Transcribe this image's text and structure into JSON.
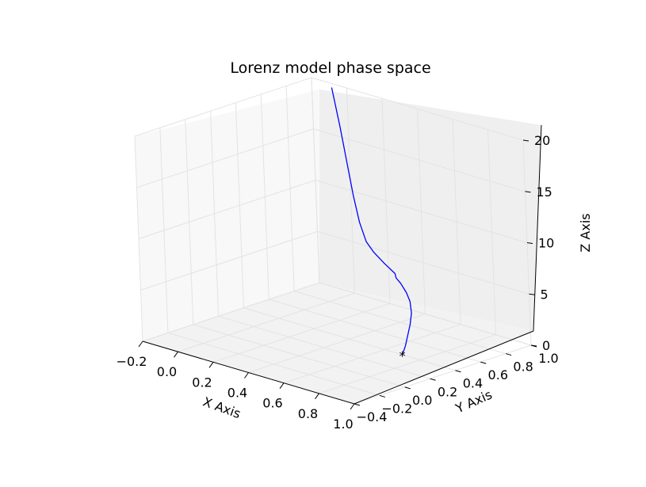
{
  "chart_data": {
    "type": "line",
    "projection": "3d",
    "title": "Lorenz model phase space",
    "xlabel": "X Axis",
    "ylabel": "Y Axis",
    "zlabel": "Z Axis",
    "xlim": [
      -0.2,
      1.0
    ],
    "ylim": [
      -0.4,
      1.0
    ],
    "zlim": [
      0,
      20
    ],
    "x_ticks": [
      "−0.2",
      "0.0",
      "0.2",
      "0.4",
      "0.6",
      "0.8",
      "1.0"
    ],
    "y_ticks": [
      "−0.4",
      "−0.2",
      "0.0",
      "0.2",
      "0.4",
      "0.6",
      "0.8",
      "1.0"
    ],
    "z_ticks": [
      "0",
      "5",
      "10",
      "15",
      "20"
    ],
    "grid": true,
    "series": [
      {
        "color": "#0000ff",
        "x": [
          0.7,
          0.72,
          0.74,
          0.78,
          0.82,
          0.88,
          0.92,
          0.94,
          0.945,
          0.94,
          0.85,
          0.75,
          0.65,
          0.52,
          0.38,
          0.24,
          0.1,
          -0.05
        ],
        "y": [
          0.4,
          0.4,
          0.39,
          0.36,
          0.32,
          0.23,
          0.15,
          0.08,
          0.04,
          0.04,
          0.08,
          0.14,
          0.22,
          0.35,
          0.5,
          0.65,
          0.8,
          0.95
        ],
        "z": [
          0,
          1,
          2,
          3.5,
          5,
          6.8,
          8.2,
          9.5,
          10.2,
          10.6,
          11,
          11.3,
          11.5,
          12.2,
          13.5,
          15.5,
          17.5,
          20
        ]
      }
    ],
    "marker": {
      "x": 0.7,
      "y": 0.4,
      "z": 0,
      "symbol": "*",
      "color": "#000000"
    }
  }
}
